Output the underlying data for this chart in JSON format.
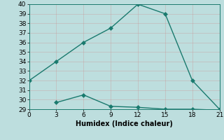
{
  "line1_x": [
    0,
    3,
    6,
    9,
    12,
    15,
    18,
    21
  ],
  "line1_y": [
    32,
    34,
    36,
    37.5,
    40,
    39,
    32,
    29
  ],
  "line2_x": [
    3,
    6,
    9,
    12,
    15,
    18,
    21
  ],
  "line2_y": [
    29.7,
    30.5,
    29.3,
    29.2,
    29.0,
    29.0,
    28.9
  ],
  "line_color": "#1a7a6e",
  "bg_color": "#bddede",
  "grid_color": "#d8eeee",
  "xlabel": "Humidex (Indice chaleur)",
  "xlim": [
    0,
    21
  ],
  "ylim": [
    29,
    40
  ],
  "xticks": [
    0,
    3,
    6,
    9,
    12,
    15,
    18,
    21
  ],
  "yticks": [
    29,
    30,
    31,
    32,
    33,
    34,
    35,
    36,
    37,
    38,
    39,
    40
  ],
  "xlabel_fontsize": 7,
  "tick_fontsize": 6.5,
  "line_width": 1.0,
  "marker_size": 3.0
}
